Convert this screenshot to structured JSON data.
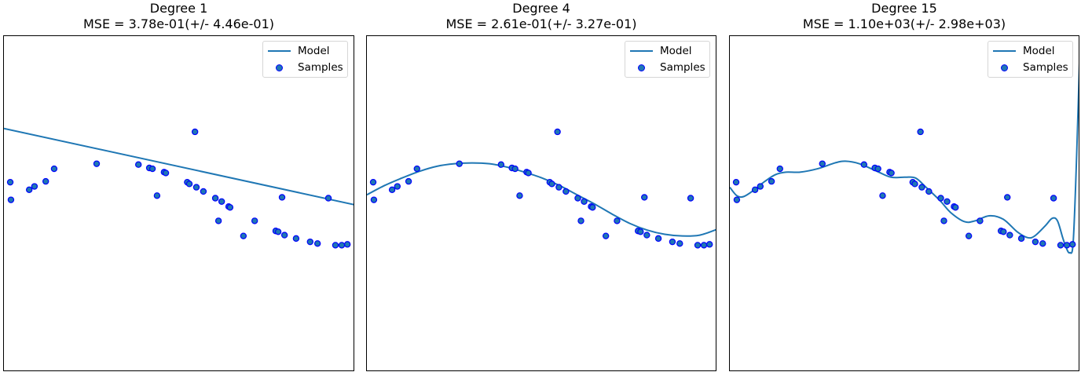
{
  "figure": {
    "panels": [
      {
        "title_line1": "Degree 1",
        "title_line2": "MSE = 3.78e-01(+/- 4.46e-01)"
      },
      {
        "title_line1": "Degree 4",
        "title_line2": "MSE = 2.61e-01(+/- 3.27e-01)"
      },
      {
        "title_line1": "Degree 15",
        "title_line2": "MSE = 1.10e+03(+/- 2.98e+03)"
      }
    ],
    "legend": {
      "model_label": "Model",
      "samples_label": "Samples"
    },
    "colors": {
      "model_line": "#1f77b4",
      "sample_face": "#1f77b4",
      "sample_edge": "#0000ff",
      "axes_edge": "#000000"
    }
  },
  "chart_data": [
    {
      "type": "scatter",
      "title": "Degree 1\nMSE = 3.78e-01(+/- 4.46e-01)",
      "xlabel": "",
      "ylabel": "",
      "xlim": [
        0,
        1
      ],
      "ylim": [
        -2,
        2
      ],
      "ticks": "hidden",
      "grid": false,
      "legend_position": "upper right",
      "series": [
        {
          "name": "Model",
          "kind": "line",
          "x": [
            0.0,
            1.0
          ],
          "y": [
            0.9,
            -0.01
          ]
        },
        {
          "name": "Samples",
          "kind": "scatter",
          "x": [
            0.018,
            0.02,
            0.072,
            0.087,
            0.119,
            0.143,
            0.264,
            0.383,
            0.414,
            0.423,
            0.436,
            0.456,
            0.461,
            0.544,
            0.522,
            0.528,
            0.548,
            0.568,
            0.602,
            0.62,
            0.64,
            0.644,
            0.611,
            0.714,
            0.682,
            0.774,
            0.781,
            0.792,
            0.799,
            0.832,
            0.872,
            0.893,
            0.924,
            0.944,
            0.962,
            0.978
          ],
          "y": [
            0.26,
            0.05,
            0.17,
            0.21,
            0.27,
            0.42,
            0.48,
            0.47,
            0.43,
            0.42,
            0.1,
            0.38,
            0.37,
            0.86,
            0.26,
            0.24,
            0.2,
            0.15,
            0.07,
            0.03,
            -0.03,
            -0.04,
            -0.2,
            -0.2,
            -0.38,
            -0.32,
            -0.33,
            0.08,
            -0.37,
            -0.41,
            -0.45,
            -0.47,
            0.07,
            -0.49,
            -0.49,
            -0.48
          ]
        }
      ]
    },
    {
      "type": "scatter",
      "title": "Degree 4\nMSE = 2.61e-01(+/- 3.27e-01)",
      "xlabel": "",
      "ylabel": "",
      "xlim": [
        0,
        1
      ],
      "ylim": [
        -2,
        2
      ],
      "ticks": "hidden",
      "grid": false,
      "legend_position": "upper right",
      "series": [
        {
          "name": "Model",
          "kind": "line",
          "x": [
            0.0,
            0.05,
            0.1,
            0.15,
            0.2,
            0.25,
            0.3,
            0.35,
            0.4,
            0.45,
            0.5,
            0.55,
            0.6,
            0.65,
            0.7,
            0.75,
            0.8,
            0.85,
            0.9,
            0.95,
            1.0
          ],
          "y": [
            0.11,
            0.22,
            0.31,
            0.39,
            0.45,
            0.48,
            0.49,
            0.48,
            0.44,
            0.38,
            0.31,
            0.22,
            0.11,
            0.0,
            -0.12,
            -0.23,
            -0.31,
            -0.36,
            -0.38,
            -0.37,
            -0.3
          ]
        },
        {
          "name": "Samples",
          "kind": "scatter",
          "x": [
            0.018,
            0.02,
            0.072,
            0.087,
            0.119,
            0.143,
            0.264,
            0.383,
            0.414,
            0.423,
            0.436,
            0.456,
            0.461,
            0.544,
            0.522,
            0.528,
            0.548,
            0.568,
            0.602,
            0.62,
            0.64,
            0.644,
            0.611,
            0.714,
            0.682,
            0.774,
            0.781,
            0.792,
            0.799,
            0.832,
            0.872,
            0.893,
            0.924,
            0.944,
            0.962,
            0.978
          ],
          "y": [
            0.26,
            0.05,
            0.17,
            0.21,
            0.27,
            0.42,
            0.48,
            0.47,
            0.43,
            0.42,
            0.1,
            0.38,
            0.37,
            0.86,
            0.26,
            0.24,
            0.2,
            0.15,
            0.07,
            0.03,
            -0.03,
            -0.04,
            -0.2,
            -0.2,
            -0.38,
            -0.32,
            -0.33,
            0.08,
            -0.37,
            -0.41,
            -0.45,
            -0.47,
            0.07,
            -0.49,
            -0.49,
            -0.48
          ]
        }
      ]
    },
    {
      "type": "scatter",
      "title": "Degree 15\nMSE = 1.10e+03(+/- 2.98e+03)",
      "xlabel": "",
      "ylabel": "",
      "xlim": [
        0,
        1
      ],
      "ylim": [
        -2,
        2
      ],
      "ticks": "hidden",
      "grid": false,
      "legend_position": "upper right",
      "series": [
        {
          "name": "Model",
          "kind": "line",
          "x": [
            0.0,
            0.02,
            0.04,
            0.07,
            0.1,
            0.13,
            0.16,
            0.2,
            0.25,
            0.3,
            0.33,
            0.37,
            0.42,
            0.46,
            0.5,
            0.53,
            0.56,
            0.6,
            0.63,
            0.67,
            0.7,
            0.74,
            0.78,
            0.82,
            0.85,
            0.87,
            0.9,
            0.92,
            0.935,
            0.95,
            0.96,
            0.97,
            0.98,
            0.99,
            1.0
          ],
          "y": [
            0.2,
            0.1,
            0.09,
            0.17,
            0.27,
            0.35,
            0.38,
            0.38,
            0.42,
            0.49,
            0.51,
            0.48,
            0.39,
            0.32,
            0.32,
            0.31,
            0.2,
            0.04,
            -0.1,
            -0.21,
            -0.2,
            -0.14,
            -0.18,
            -0.33,
            -0.4,
            -0.38,
            -0.26,
            -0.17,
            -0.2,
            -0.4,
            -0.52,
            -0.58,
            -0.45,
            0.6,
            2.0
          ]
        },
        {
          "name": "Samples",
          "kind": "scatter",
          "x": [
            0.018,
            0.02,
            0.072,
            0.087,
            0.119,
            0.143,
            0.264,
            0.383,
            0.414,
            0.423,
            0.436,
            0.456,
            0.461,
            0.544,
            0.522,
            0.528,
            0.548,
            0.568,
            0.602,
            0.62,
            0.64,
            0.644,
            0.611,
            0.714,
            0.682,
            0.774,
            0.781,
            0.792,
            0.799,
            0.832,
            0.872,
            0.893,
            0.924,
            0.944,
            0.962,
            0.978
          ],
          "y": [
            0.26,
            0.05,
            0.17,
            0.21,
            0.27,
            0.42,
            0.48,
            0.47,
            0.43,
            0.42,
            0.1,
            0.38,
            0.37,
            0.86,
            0.26,
            0.24,
            0.2,
            0.15,
            0.07,
            0.03,
            -0.03,
            -0.04,
            -0.2,
            -0.2,
            -0.38,
            -0.32,
            -0.33,
            0.08,
            -0.37,
            -0.41,
            -0.45,
            -0.47,
            0.07,
            -0.49,
            -0.49,
            -0.48
          ]
        }
      ]
    }
  ]
}
